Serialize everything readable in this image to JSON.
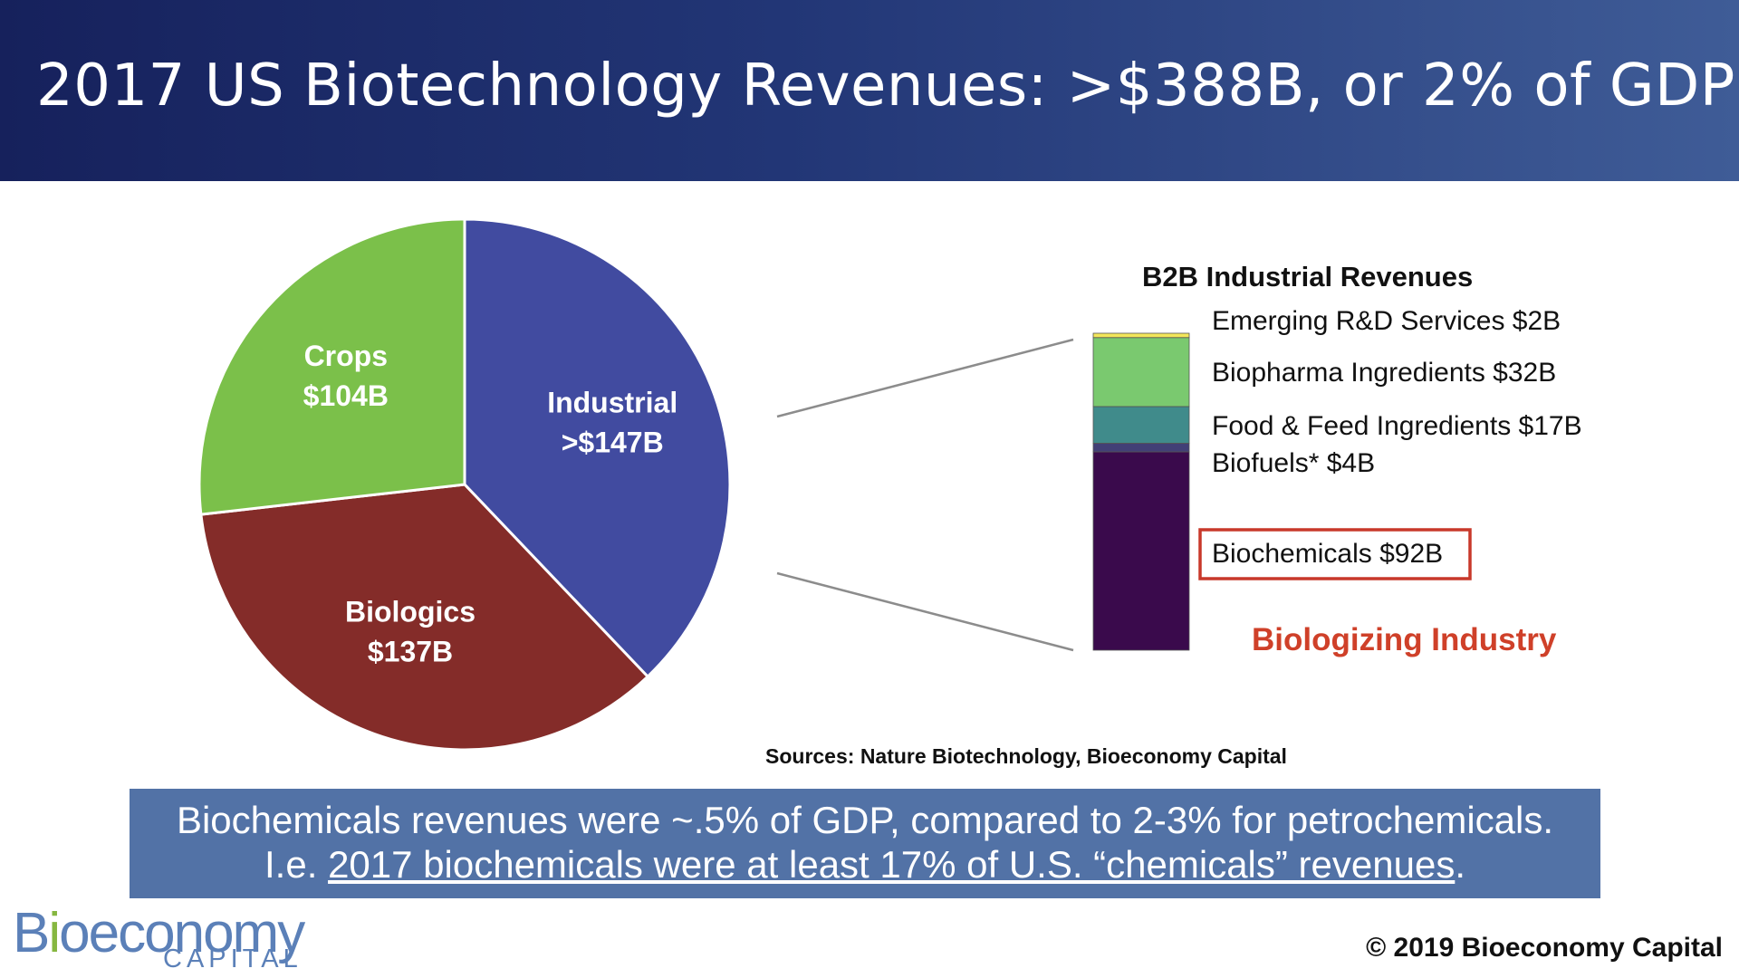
{
  "header": {
    "title": "2017 US Biotechnology Revenues: >$388B, or 2% of GDP"
  },
  "chart_data": [
    {
      "type": "pie",
      "title": "2017 US Biotechnology Revenues",
      "slices": [
        {
          "name": "Industrial",
          "label": [
            "Industrial",
            ">$147B"
          ],
          "value": 147,
          "color": "#414ba0"
        },
        {
          "name": "Biologics",
          "label": [
            "Biologics",
            "$137B"
          ],
          "value": 137,
          "color": "#842c29"
        },
        {
          "name": "Crops",
          "label": [
            "Crops",
            "$104B"
          ],
          "value": 104,
          "color": "#7bc04a"
        }
      ]
    },
    {
      "type": "bar",
      "stacked": true,
      "title": "B2B Industrial Revenues",
      "series": [
        {
          "name": "Biochemicals",
          "label": "Biochemicals $92B",
          "value": 92,
          "color": "#3a0a4c",
          "highlighted": true
        },
        {
          "name": "Biofuels",
          "label": "Biofuels* $4B",
          "value": 4,
          "color": "#423f76"
        },
        {
          "name": "Food & Feed Ingredients",
          "label": "Food & Feed Ingredients $17B",
          "value": 17,
          "color": "#408b8b"
        },
        {
          "name": "Biopharma Ingredients",
          "label": "Biopharma Ingredients $32B",
          "value": 32,
          "color": "#7ac96f"
        },
        {
          "name": "Emerging R&D Services",
          "label": "Emerging R&D Services $2B",
          "value": 2,
          "color": "#f3e65a"
        }
      ],
      "annotation": "Biologizing Industry",
      "annotation_color": "#cf4029",
      "highlight_color": "#c8382a"
    }
  ],
  "source": "Sources: Nature Biotechnology, Bioeconomy Capital",
  "callout": {
    "line1": "Biochemicals revenues were ~.5% of GDP, compared to 2-3% for petrochemicals.",
    "line2_prefix": "I.e. ",
    "line2_link": "2017 biochemicals were at least 17% of U.S. “chemicals” revenues",
    "line2_suffix": "."
  },
  "logo": {
    "letter_b": "B",
    "letter_i": "i",
    "rest": "oeconomy",
    "sub": "CAPITAL"
  },
  "copyright": "© 2019 Bioeconomy Capital"
}
